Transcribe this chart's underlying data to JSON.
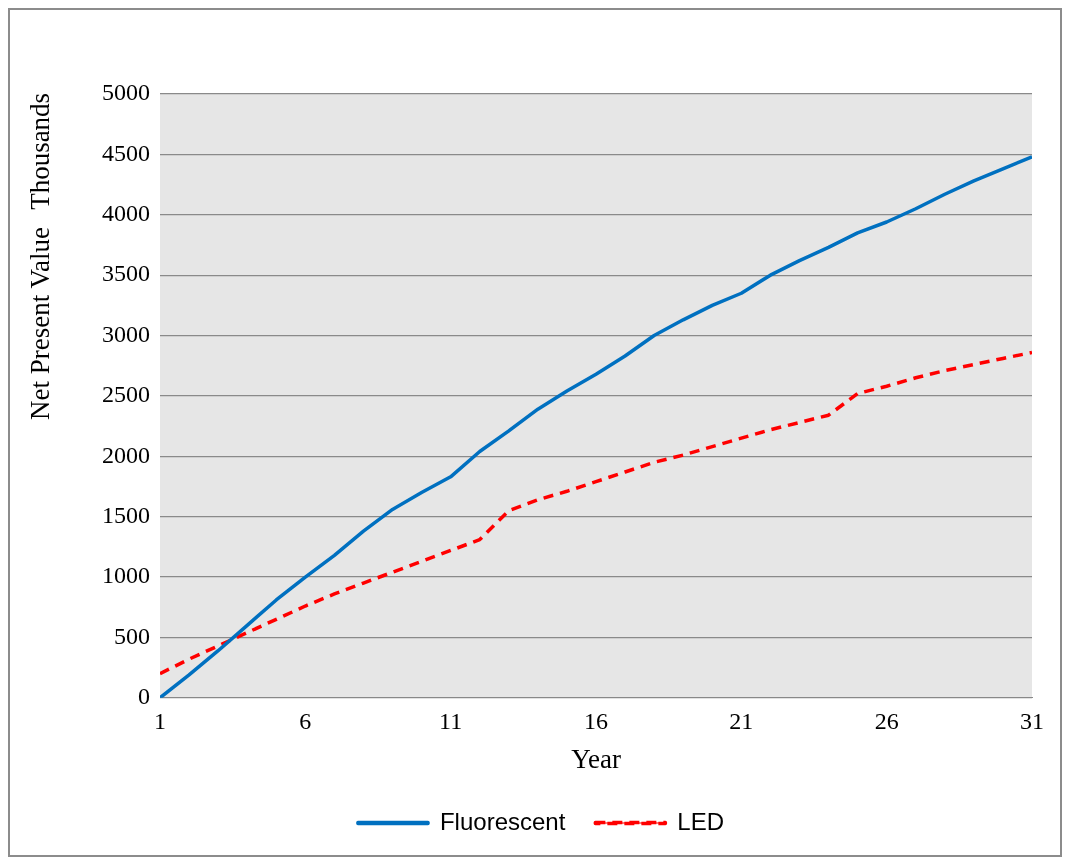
{
  "chart_data": {
    "type": "line",
    "xlabel": "Year",
    "ylabel": "Net Present Value",
    "annotations": [
      "Thousands"
    ],
    "x": [
      1,
      2,
      3,
      4,
      5,
      6,
      7,
      8,
      9,
      10,
      11,
      12,
      13,
      14,
      15,
      16,
      17,
      18,
      19,
      20,
      21,
      22,
      23,
      24,
      25,
      26,
      27,
      28,
      29,
      30,
      31
    ],
    "xlim": [
      1,
      31
    ],
    "xticks": [
      1,
      6,
      11,
      16,
      21,
      26,
      31
    ],
    "ylim": [
      0,
      5000
    ],
    "yticks": [
      0,
      500,
      1000,
      1500,
      2000,
      2500,
      3000,
      3500,
      4000,
      4500,
      5000
    ],
    "grid": "y",
    "legend": "bottom",
    "marker": "none",
    "series": [
      {
        "name": "Fluorescent",
        "color": "#0070c0",
        "line_style": "solid",
        "values": [
          0,
          190,
          390,
          600,
          810,
          1000,
          1180,
          1380,
          1560,
          1700,
          1830,
          2040,
          2210,
          2390,
          2540,
          2680,
          2830,
          3000,
          3130,
          3250,
          3350,
          3500,
          3620,
          3730,
          3850,
          3940,
          4050,
          4170,
          4280,
          4380,
          4480
        ]
      },
      {
        "name": "LED",
        "color": "#ff0000",
        "line_style": "dashed",
        "values": [
          200,
          320,
          430,
          540,
          650,
          760,
          860,
          950,
          1040,
          1130,
          1220,
          1310,
          1550,
          1640,
          1710,
          1790,
          1870,
          1950,
          2010,
          2080,
          2150,
          2220,
          2280,
          2340,
          2520,
          2580,
          2650,
          2710,
          2760,
          2810,
          2860
        ]
      }
    ]
  }
}
